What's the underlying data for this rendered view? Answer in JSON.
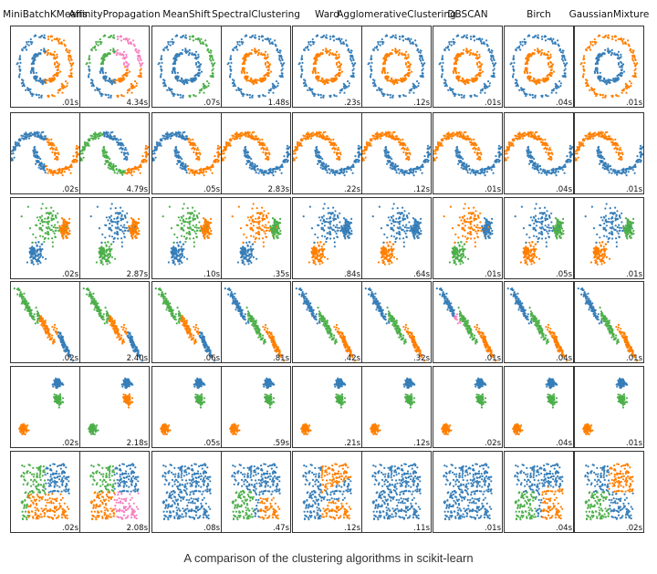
{
  "caption": "A comparison of the clustering algorithms in scikit-learn",
  "chart_data": {
    "type": "scatter",
    "title": "",
    "columns": [
      "MiniBatchKMeans",
      "AffinityPropagation",
      "MeanShift",
      "SpectralClustering",
      "Ward",
      "AgglomerativeClustering",
      "DBSCAN",
      "Birch",
      "GaussianMixture"
    ],
    "datasets": [
      "noisy_circles",
      "noisy_moons",
      "varied_blobs",
      "anisotropic_blobs",
      "blobs",
      "no_structure"
    ],
    "timings": [
      [
        ".01s",
        "4.34s",
        ".07s",
        "1.48s",
        ".23s",
        ".12s",
        ".01s",
        ".04s",
        ".01s"
      ],
      [
        ".02s",
        "4.79s",
        ".05s",
        "2.83s",
        ".22s",
        ".12s",
        ".01s",
        ".04s",
        ".01s"
      ],
      [
        ".02s",
        "2.87s",
        ".10s",
        ".35s",
        ".84s",
        ".64s",
        ".01s",
        ".05s",
        ".01s"
      ],
      [
        ".02s",
        "2.40s",
        ".06s",
        ".81s",
        ".42s",
        ".32s",
        ".01s",
        ".04s",
        ".01s"
      ],
      [
        ".02s",
        "2.18s",
        ".05s",
        ".59s",
        ".21s",
        ".12s",
        ".02s",
        ".04s",
        ".01s"
      ],
      [
        ".02s",
        "2.08s",
        ".08s",
        ".47s",
        ".12s",
        ".11s",
        ".01s",
        ".04s",
        ".02s"
      ]
    ],
    "series_colors": {
      "cluster_0": "#377eb8",
      "cluster_1": "#ff7f00",
      "cluster_2": "#4daf4a",
      "cluster_3": "#f781bf",
      "noise": "#000000"
    },
    "circle_radii": {
      "outer": 1.0,
      "inner": 0.5
    },
    "moons": {
      "upper_center": [
        0,
        0
      ],
      "lower_center": [
        1,
        0.5
      ],
      "radius": 1
    },
    "axis_range": {
      "x": [
        -2.5,
        2.5
      ],
      "y": [
        -2.5,
        2.5
      ]
    },
    "points_per_plot": 300,
    "grid": false,
    "ticks": false,
    "legend": "none"
  }
}
